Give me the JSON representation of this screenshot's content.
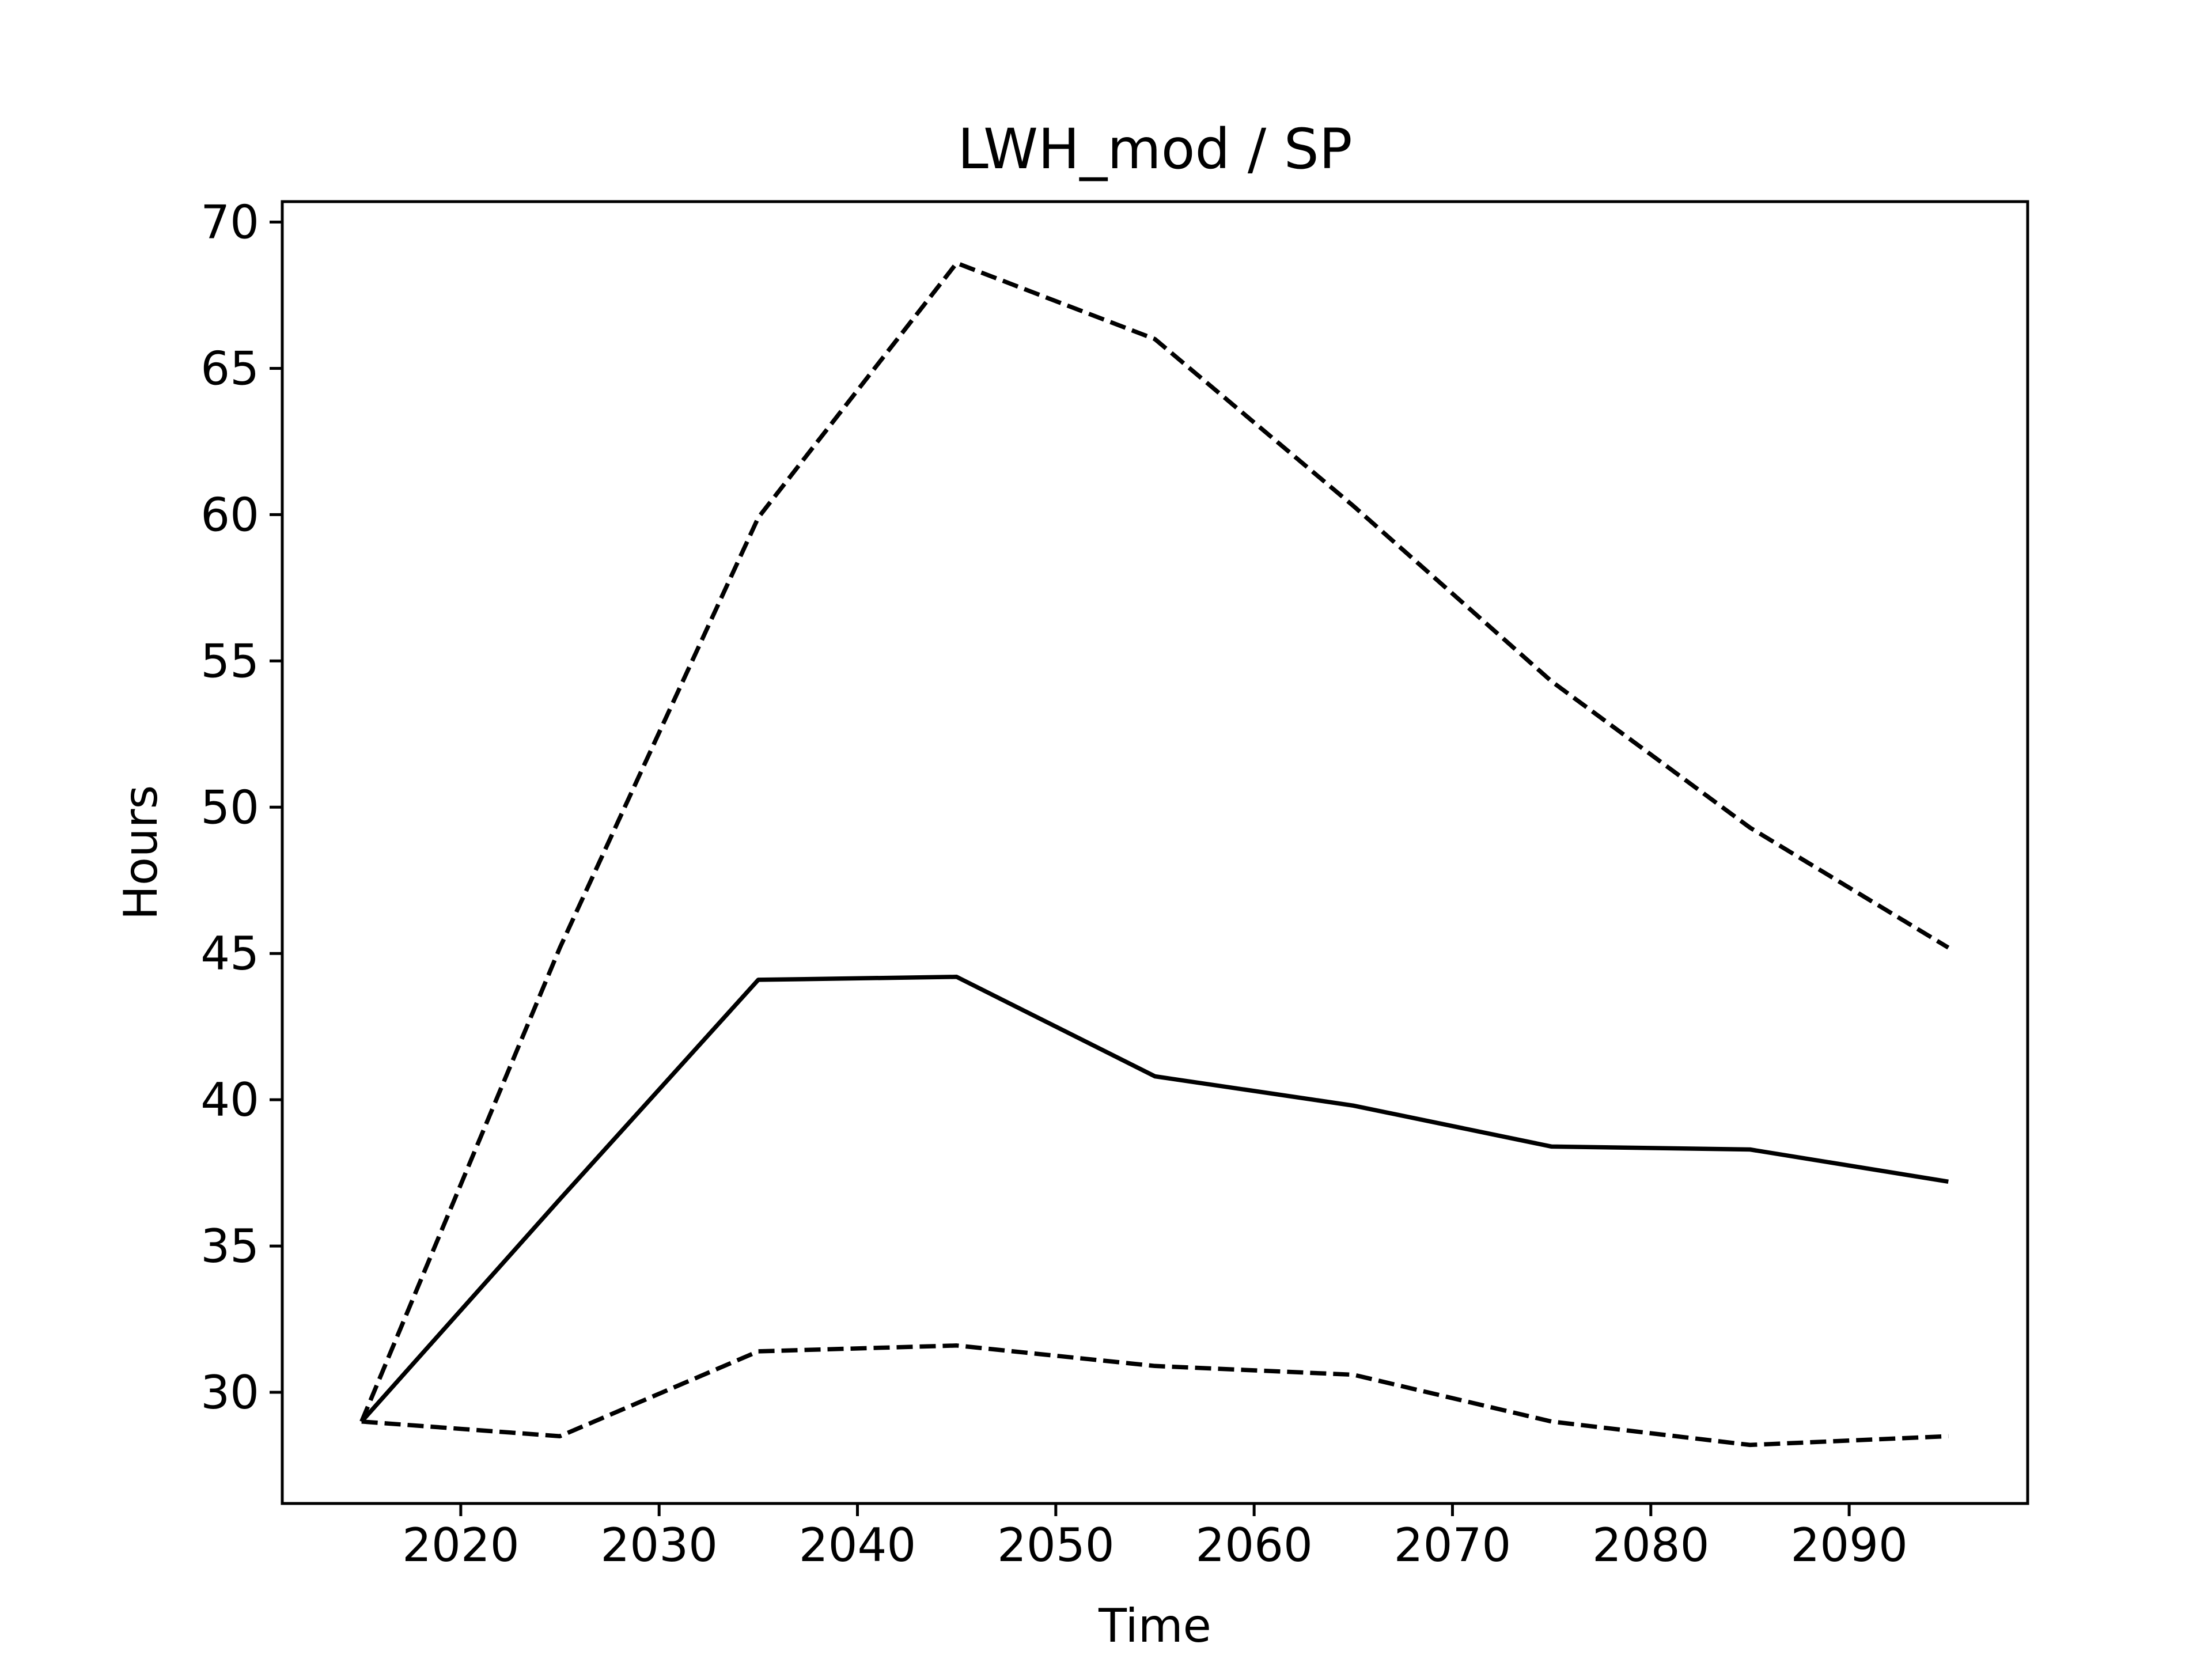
{
  "chart_data": {
    "type": "line",
    "title": "LWH_mod / SP",
    "xlabel": "Time",
    "ylabel": "Hours",
    "xlim": [
      2011,
      2099
    ],
    "ylim": [
      26.2,
      70.7
    ],
    "xticks": [
      2020,
      2030,
      2040,
      2050,
      2060,
      2070,
      2080,
      2090
    ],
    "yticks": [
      30,
      35,
      40,
      45,
      50,
      55,
      60,
      65,
      70
    ],
    "grid": false,
    "legend": "none",
    "x": [
      2015,
      2025,
      2035,
      2045,
      2055,
      2065,
      2075,
      2085,
      2095
    ],
    "series": [
      {
        "style": "solid",
        "color": "#000000",
        "values": [
          29.0,
          36.6,
          44.1,
          44.2,
          40.8,
          39.8,
          38.4,
          38.3,
          37.2
        ]
      },
      {
        "style": "dashed",
        "color": "#000000",
        "values": [
          29.0,
          45.2,
          59.9,
          68.6,
          66.0,
          60.3,
          54.3,
          49.3,
          45.2
        ]
      },
      {
        "style": "dashed",
        "color": "#000000",
        "values": [
          29.0,
          28.5,
          31.4,
          31.6,
          30.9,
          30.6,
          29.0,
          28.2,
          28.5
        ]
      }
    ]
  }
}
